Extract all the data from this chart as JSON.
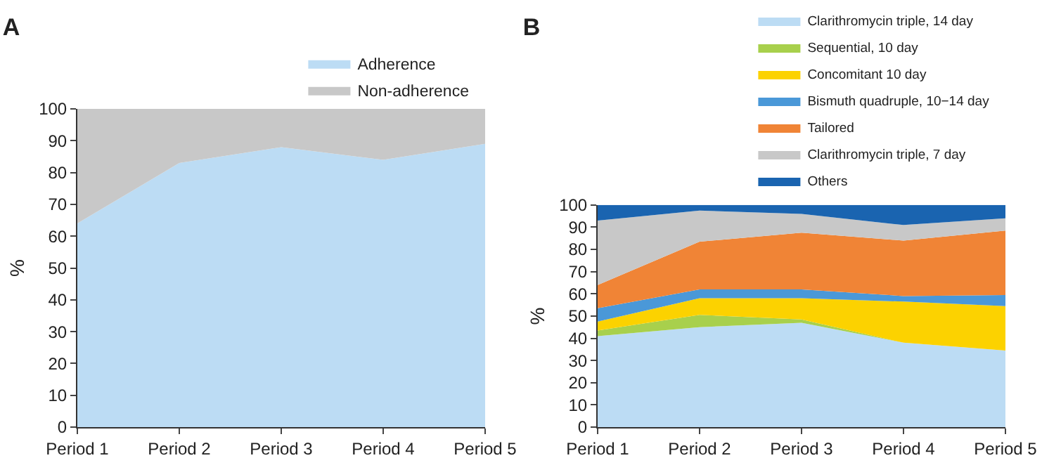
{
  "chart_data": [
    {
      "type": "area",
      "title": "A",
      "ylabel": "%",
      "stacked": true,
      "categories": [
        "Period 1",
        "Period 2",
        "Period 3",
        "Period 4",
        "Period 5"
      ],
      "ylim": [
        0,
        100
      ],
      "yticks": [
        0,
        10,
        20,
        30,
        40,
        50,
        60,
        70,
        80,
        90,
        100
      ],
      "legend": "top right",
      "grid": false,
      "series": [
        {
          "name": "Adherence",
          "color": "#bcdcf4",
          "values": [
            64,
            83,
            88,
            84,
            89
          ]
        },
        {
          "name": "Non-adherence",
          "color": "#c8c8c8",
          "values": [
            36,
            17,
            12,
            16,
            11
          ]
        }
      ]
    },
    {
      "type": "area",
      "title": "B",
      "ylabel": "%",
      "stacked": true,
      "categories": [
        "Period 1",
        "Period 2",
        "Period 3",
        "Period 4",
        "Period 5"
      ],
      "ylim": [
        0,
        100
      ],
      "yticks": [
        0,
        10,
        20,
        30,
        40,
        50,
        60,
        70,
        80,
        90,
        100
      ],
      "legend": "top right",
      "grid": false,
      "series": [
        {
          "name": "Clarithromycin triple, 14 day",
          "color": "#bcdcf4",
          "values": [
            41,
            45,
            47,
            38,
            34.5
          ]
        },
        {
          "name": "Sequential, 10 day",
          "color": "#a8d04c",
          "values": [
            2.5,
            5.5,
            1.5,
            0,
            0
          ]
        },
        {
          "name": "Concomitant 10 day",
          "color": "#fcd200",
          "values": [
            4,
            7.5,
            9.5,
            18.5,
            20
          ]
        },
        {
          "name": "Bismuth quadruple, 10−14 day",
          "color": "#4a98d8",
          "values": [
            6,
            4,
            4,
            2.5,
            5
          ]
        },
        {
          "name": "Tailored",
          "color": "#f08436",
          "values": [
            10.5,
            21.5,
            25.5,
            25,
            29
          ]
        },
        {
          "name": "Clarithromycin triple, 7 day",
          "color": "#c8c8c8",
          "values": [
            29,
            14,
            8.5,
            7,
            5.5
          ]
        },
        {
          "name": "Others",
          "color": "#1a64b0",
          "values": [
            7,
            2.5,
            4,
            9,
            6
          ]
        }
      ]
    }
  ]
}
